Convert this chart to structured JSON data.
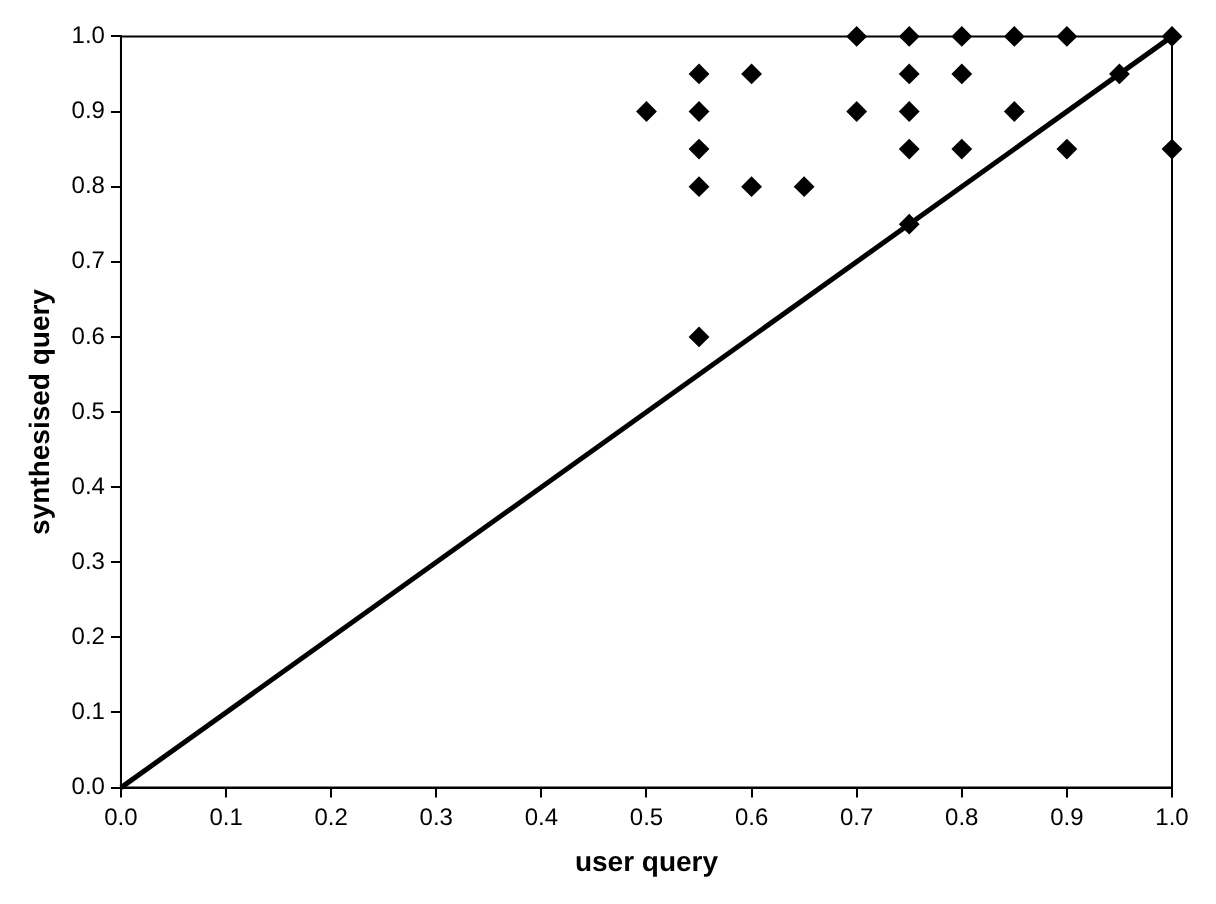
{
  "chart_data": {
    "type": "scatter",
    "xlabel": "user query",
    "ylabel": "synthesised query",
    "xlim": [
      0,
      1
    ],
    "ylim": [
      0,
      1
    ],
    "xticks": [
      {
        "value": 0,
        "label": "0.0"
      },
      {
        "value": 0.1,
        "label": "0.1"
      },
      {
        "value": 0.2,
        "label": "0.2"
      },
      {
        "value": 0.3,
        "label": "0.3"
      },
      {
        "value": 0.4,
        "label": "0.4"
      },
      {
        "value": 0.5,
        "label": "0.5"
      },
      {
        "value": 0.6,
        "label": "0.6"
      },
      {
        "value": 0.7,
        "label": "0.7"
      },
      {
        "value": 0.8,
        "label": "0.8"
      },
      {
        "value": 0.9,
        "label": "0.9"
      },
      {
        "value": 1,
        "label": "1.0"
      }
    ],
    "yticks": [
      {
        "value": 0,
        "label": "0.0"
      },
      {
        "value": 0.1,
        "label": "0.1"
      },
      {
        "value": 0.2,
        "label": "0.2"
      },
      {
        "value": 0.3,
        "label": "0.3"
      },
      {
        "value": 0.4,
        "label": "0.4"
      },
      {
        "value": 0.5,
        "label": "0.5"
      },
      {
        "value": 0.6,
        "label": "0.6"
      },
      {
        "value": 0.7,
        "label": "0.7"
      },
      {
        "value": 0.8,
        "label": "0.8"
      },
      {
        "value": 0.9,
        "label": "0.9"
      },
      {
        "value": 1,
        "label": "1.0"
      }
    ],
    "grid": false,
    "legend": false,
    "marker": "diamond",
    "series": [
      {
        "color": "#000000",
        "x": [
          0.5,
          0.55,
          0.55,
          0.55,
          0.55,
          0.55,
          0.6,
          0.6,
          0.65,
          0.7,
          0.7,
          0.75,
          0.75,
          0.75,
          0.75,
          0.75,
          0.8,
          0.8,
          0.8,
          0.85,
          0.85,
          0.9,
          0.9,
          0.95,
          1.0,
          1.0
        ],
        "values": [
          0.9,
          0.95,
          0.9,
          0.85,
          0.8,
          0.6,
          0.95,
          0.8,
          0.8,
          1.0,
          0.9,
          1.0,
          0.95,
          0.9,
          0.85,
          0.75,
          1.0,
          0.95,
          0.85,
          1.0,
          0.9,
          1.0,
          0.85,
          0.95,
          1.0,
          0.85
        ]
      },
      {
        "type": "line",
        "color": "#000000",
        "x": [
          0,
          1
        ],
        "values": [
          0,
          1
        ],
        "marker": "none",
        "line_style": "solid"
      }
    ]
  }
}
